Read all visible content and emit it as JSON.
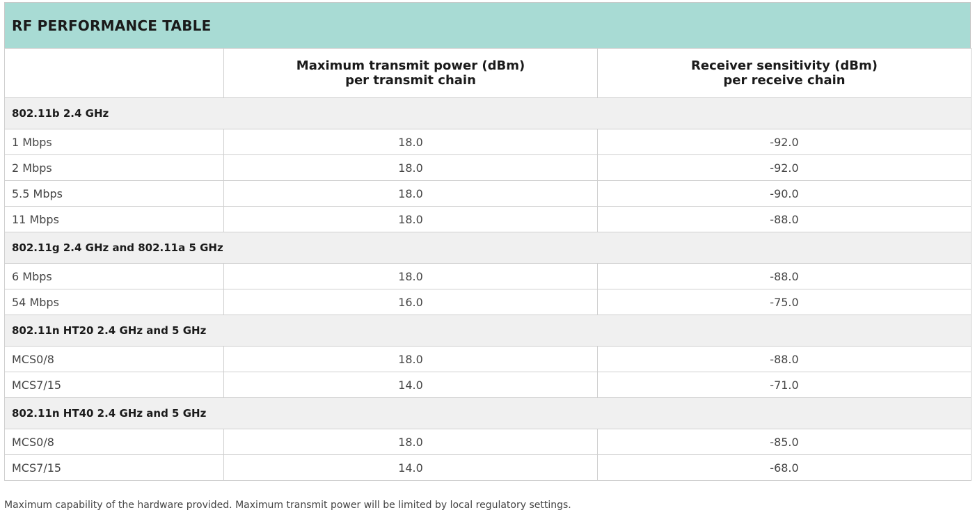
{
  "title": "RF PERFORMANCE TABLE",
  "header": {
    "col1": "",
    "col2_line1": "Maximum transmit power (dBm)",
    "col2_line2": "per transmit chain",
    "col3_line1": "Receiver sensitivity (dBm)",
    "col3_line2": "per receive chain"
  },
  "groups": [
    {
      "name": "802.11b 2.4 GHz",
      "rows": [
        {
          "rate": "1 Mbps",
          "tx": "18.0",
          "rx": "-92.0"
        },
        {
          "rate": "2 Mbps",
          "tx": "18.0",
          "rx": "-92.0"
        },
        {
          "rate": "5.5 Mbps",
          "tx": "18.0",
          "rx": "-90.0"
        },
        {
          "rate": "11 Mbps",
          "tx": "18.0",
          "rx": "-88.0"
        }
      ]
    },
    {
      "name": "802.11g 2.4 GHz and 802.11a 5 GHz",
      "rows": [
        {
          "rate": "6 Mbps",
          "tx": "18.0",
          "rx": "-88.0"
        },
        {
          "rate": "54 Mbps",
          "tx": "16.0",
          "rx": "-75.0"
        }
      ]
    },
    {
      "name": "802.11n HT20 2.4 GHz and 5 GHz",
      "rows": [
        {
          "rate": "MCS0/8",
          "tx": "18.0",
          "rx": "-88.0"
        },
        {
          "rate": "MCS7/15",
          "tx": "14.0",
          "rx": "-71.0"
        }
      ]
    },
    {
      "name": "802.11n HT40 2.4 GHz and 5 GHz",
      "rows": [
        {
          "rate": "MCS0/8",
          "tx": "18.0",
          "rx": "-85.0"
        },
        {
          "rate": "MCS7/15",
          "tx": "14.0",
          "rx": "-68.0"
        }
      ]
    }
  ],
  "footnote": "Maximum capability of the hardware provided. Maximum transmit power will be limited by local regulatory settings."
}
